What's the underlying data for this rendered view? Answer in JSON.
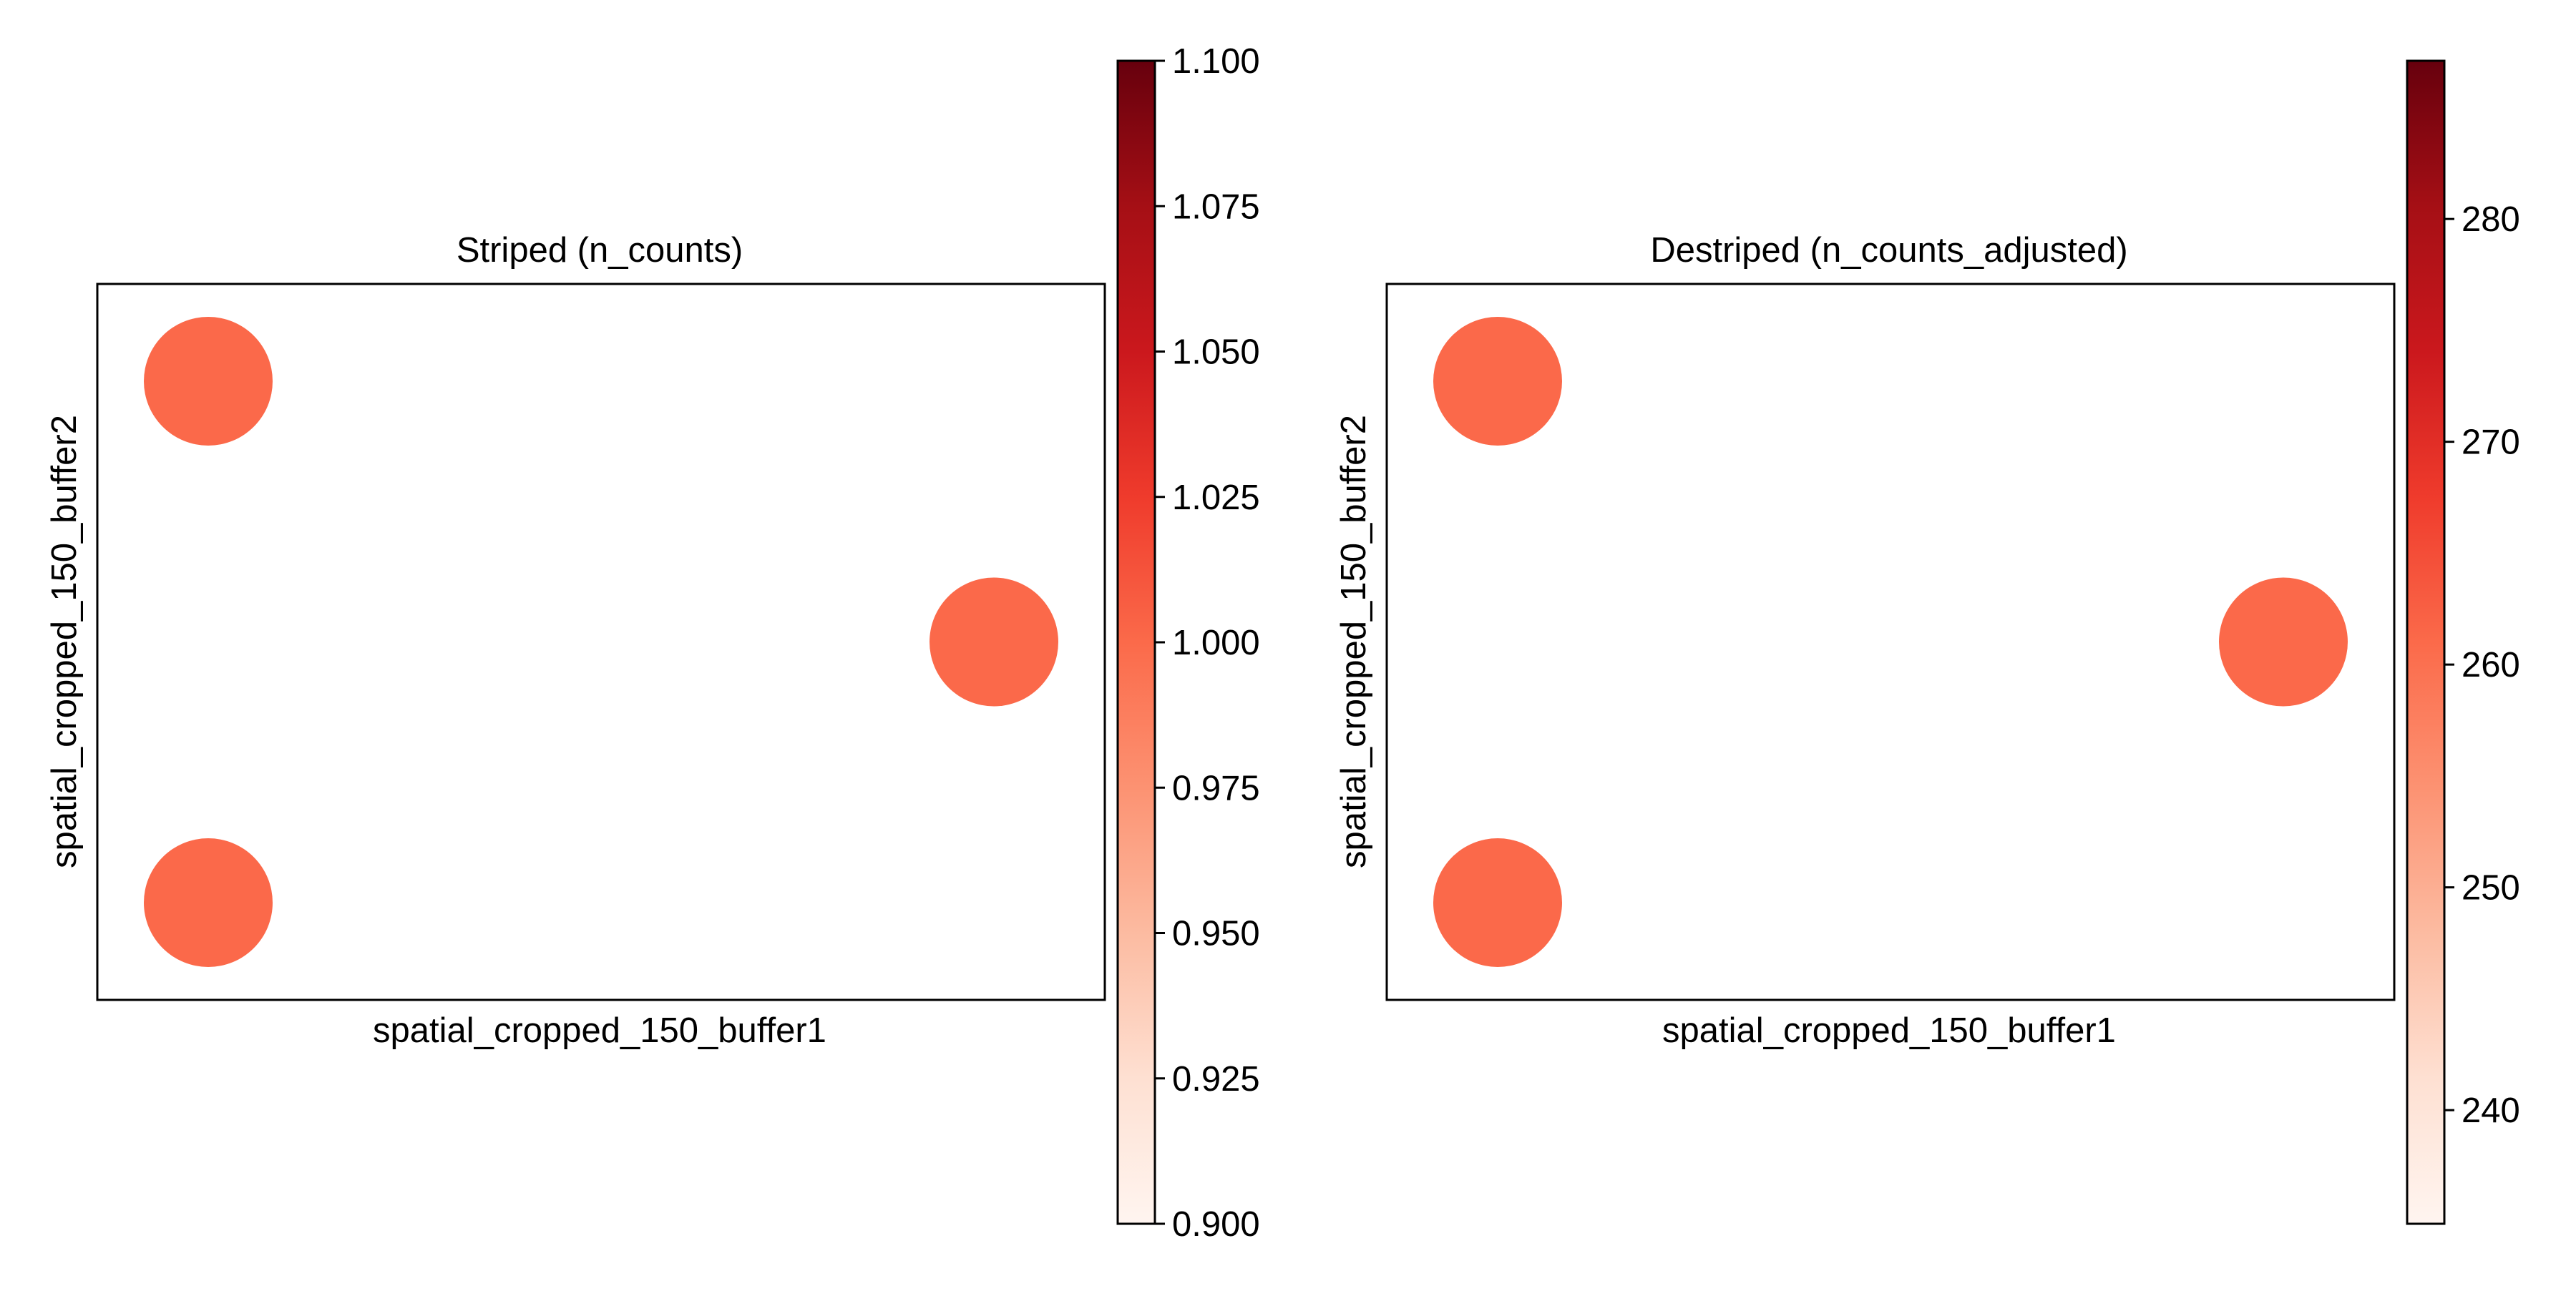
{
  "chart_data": [
    {
      "type": "scatter",
      "title": "Striped (n_counts)",
      "xlabel": "spatial_cropped_150_buffer1",
      "ylabel": "spatial_cropped_150_buffer2",
      "x_ticks_shown": false,
      "y_ticks_shown": false,
      "grid": false,
      "colormap": "Reds",
      "colorbar": {
        "range": [
          0.9,
          1.1
        ],
        "ticks": [
          "0.900",
          "0.925",
          "0.950",
          "0.975",
          "1.000",
          "1.025",
          "1.050",
          "1.075",
          "1.100"
        ],
        "colors": [
          "#fff5f0",
          "#fee0d2",
          "#fcbba1",
          "#fc9272",
          "#fb6a4a",
          "#ef3b2c",
          "#cb181d",
          "#a50f15",
          "#67000d"
        ]
      },
      "points": [
        {
          "x": 0,
          "y": 2,
          "value": 1.0,
          "color": "#fb694a"
        },
        {
          "x": 6,
          "y": 1,
          "value": 1.0,
          "color": "#fb694a"
        },
        {
          "x": 0,
          "y": 0,
          "value": 1.0,
          "color": "#fb694a"
        }
      ],
      "point_color": "#fb694a"
    },
    {
      "type": "scatter",
      "title": "Destriped (n_counts_adjusted)",
      "xlabel": "spatial_cropped_150_buffer1",
      "ylabel": "spatial_cropped_150_buffer2",
      "x_ticks_shown": false,
      "y_ticks_shown": false,
      "grid": false,
      "colormap": "Reds",
      "colorbar": {
        "range": [
          234.9,
          287.1
        ],
        "ticks": [
          "240",
          "250",
          "260",
          "270",
          "280"
        ],
        "colors": [
          "#fff5f0",
          "#fee0d2",
          "#fcbba1",
          "#fc9272",
          "#fb6a4a",
          "#ef3b2c",
          "#cb181d",
          "#a50f15",
          "#67000d"
        ]
      },
      "points": [
        {
          "x": 0,
          "y": 2,
          "value": 261,
          "color": "#fb694a"
        },
        {
          "x": 6,
          "y": 1,
          "value": 261,
          "color": "#fb694a"
        },
        {
          "x": 0,
          "y": 0,
          "value": 261,
          "color": "#fb694a"
        }
      ],
      "point_color": "#fb694a"
    }
  ]
}
